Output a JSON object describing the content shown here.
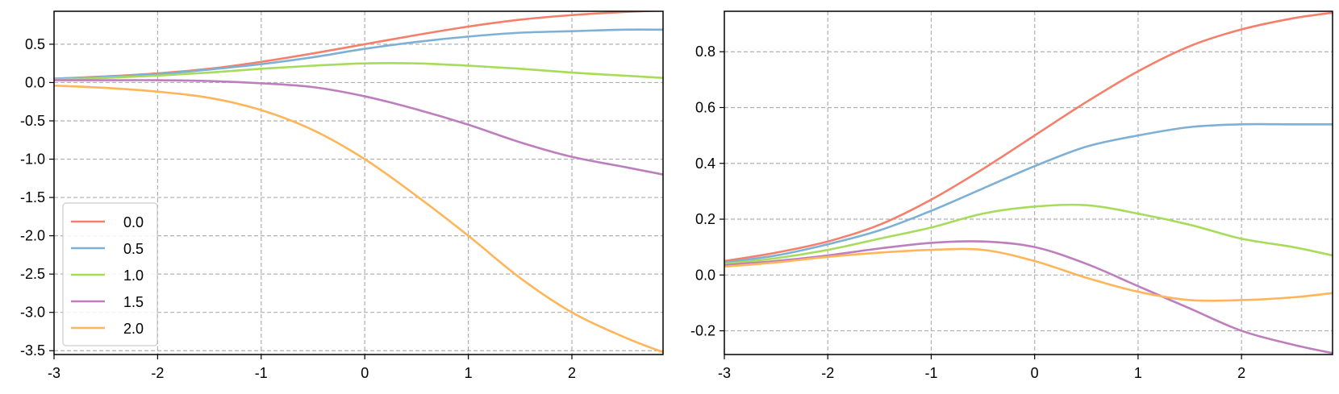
{
  "chart_data": [
    {
      "type": "line",
      "title": "",
      "xlabel": "",
      "ylabel": "",
      "xlim": [
        -3,
        2.88
      ],
      "ylim": [
        -3.55,
        0.93
      ],
      "xticks": [
        -3,
        -2,
        -1,
        0,
        1,
        2
      ],
      "xtick_labels": [
        "-3",
        "-2",
        "-1",
        "0",
        "1",
        "2"
      ],
      "yticks": [
        0.5,
        0.0,
        -0.5,
        -1.0,
        -1.5,
        -2.0,
        -2.5,
        -3.0,
        -3.5
      ],
      "ytick_labels": [
        "0.5",
        "0.0",
        "-0.5",
        "-1.0",
        "-1.5",
        "-2.0",
        "-2.5",
        "-3.0",
        "-3.5"
      ],
      "grid": true,
      "legend": {
        "position": "lower-left",
        "entries": [
          "0.0",
          "0.5",
          "1.0",
          "1.5",
          "2.0"
        ]
      },
      "x": [
        -3,
        -2.5,
        -2,
        -1.5,
        -1,
        -0.5,
        0,
        0.5,
        1,
        1.5,
        2,
        2.5,
        2.88
      ],
      "series": [
        {
          "name": "0.0",
          "color": "#f47f6b",
          "values": [
            0.05,
            0.08,
            0.12,
            0.18,
            0.27,
            0.38,
            0.5,
            0.62,
            0.73,
            0.82,
            0.88,
            0.92,
            0.94
          ]
        },
        {
          "name": "0.5",
          "color": "#7eb0d5",
          "values": [
            0.05,
            0.075,
            0.11,
            0.17,
            0.24,
            0.33,
            0.44,
            0.53,
            0.6,
            0.65,
            0.67,
            0.69,
            0.69
          ]
        },
        {
          "name": "1.0",
          "color": "#a6dc5a",
          "values": [
            0.04,
            0.06,
            0.09,
            0.13,
            0.18,
            0.22,
            0.25,
            0.25,
            0.22,
            0.18,
            0.13,
            0.09,
            0.06
          ]
        },
        {
          "name": "1.5",
          "color": "#bd7ebe",
          "values": [
            0.03,
            0.03,
            0.03,
            0.02,
            -0.01,
            -0.06,
            -0.18,
            -0.35,
            -0.55,
            -0.78,
            -0.97,
            -1.1,
            -1.2
          ]
        },
        {
          "name": "2.0",
          "color": "#ffb55a",
          "values": [
            -0.04,
            -0.07,
            -0.12,
            -0.2,
            -0.36,
            -0.62,
            -1.0,
            -1.48,
            -2.0,
            -2.55,
            -3.0,
            -3.32,
            -3.52
          ]
        }
      ]
    },
    {
      "type": "line",
      "title": "",
      "xlabel": "",
      "ylabel": "",
      "xlim": [
        -3,
        2.88
      ],
      "ylim": [
        -0.285,
        0.945
      ],
      "xticks": [
        -3,
        -2,
        -1,
        0,
        1,
        2
      ],
      "xtick_labels": [
        "-3",
        "-2",
        "-1",
        "0",
        "1",
        "2"
      ],
      "yticks": [
        0.8,
        0.6,
        0.4,
        0.2,
        0.0,
        -0.2
      ],
      "ytick_labels": [
        "0.8",
        "0.6",
        "0.4",
        "0.2",
        "0.0",
        "-0.2"
      ],
      "grid": true,
      "x": [
        -3,
        -2.5,
        -2,
        -1.5,
        -1,
        -0.5,
        0,
        0.5,
        1,
        1.5,
        2,
        2.5,
        2.88
      ],
      "series": [
        {
          "color": "#f47f6b",
          "values": [
            0.05,
            0.08,
            0.12,
            0.18,
            0.27,
            0.38,
            0.5,
            0.62,
            0.73,
            0.82,
            0.88,
            0.92,
            0.94
          ]
        },
        {
          "color": "#7eb0d5",
          "values": [
            0.045,
            0.07,
            0.11,
            0.16,
            0.23,
            0.31,
            0.39,
            0.46,
            0.5,
            0.53,
            0.54,
            0.54,
            0.54
          ]
        },
        {
          "color": "#a6dc5a",
          "values": [
            0.04,
            0.06,
            0.09,
            0.13,
            0.17,
            0.22,
            0.245,
            0.25,
            0.22,
            0.18,
            0.13,
            0.1,
            0.07
          ]
        },
        {
          "color": "#bd7ebe",
          "values": [
            0.035,
            0.05,
            0.07,
            0.095,
            0.115,
            0.12,
            0.1,
            0.04,
            -0.04,
            -0.12,
            -0.2,
            -0.25,
            -0.28
          ]
        },
        {
          "color": "#ffb55a",
          "values": [
            0.03,
            0.045,
            0.065,
            0.08,
            0.09,
            0.09,
            0.05,
            -0.01,
            -0.06,
            -0.09,
            -0.09,
            -0.08,
            -0.065
          ]
        }
      ]
    }
  ]
}
